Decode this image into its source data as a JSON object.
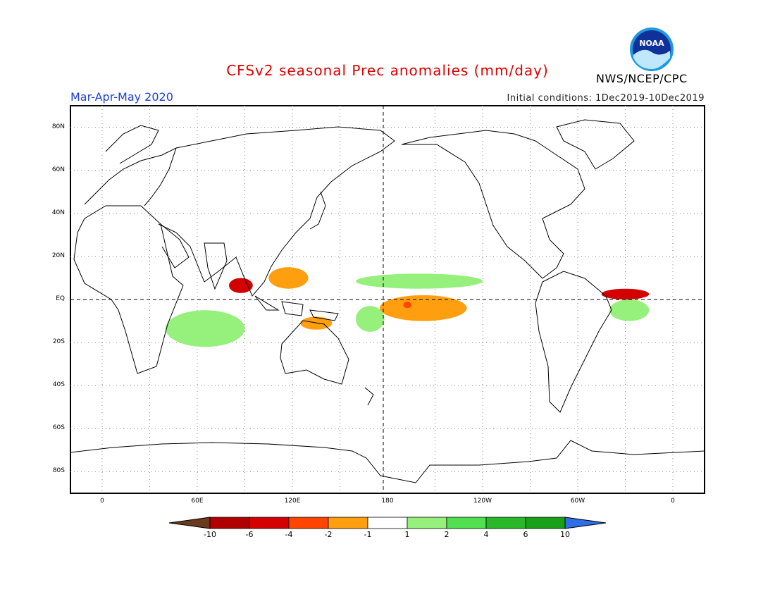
{
  "header": {
    "title": "CFSv2 seasonal Prec anomalies (mm/day)",
    "season": "Mar-Apr-May 2020",
    "initial_conditions": "Initial conditions: 1Dec2019-10Dec2019",
    "agency": "NWS/NCEP/CPC",
    "logo_text": "NOAA"
  },
  "map": {
    "projection": "cylindrical equidistant",
    "lat_range": [
      -90,
      90
    ],
    "lon_range": [
      -20,
      380
    ],
    "lat_labels": [
      "80N",
      "60N",
      "40N",
      "20N",
      "EQ",
      "20S",
      "40S",
      "60S",
      "80S"
    ],
    "lon_labels": [
      "0",
      "60E",
      "120E",
      "180",
      "120W",
      "60W",
      "0"
    ],
    "gridlines": "dotted",
    "reference_lines": [
      "equator",
      "180 meridian"
    ]
  },
  "legend": {
    "labels": [
      "-10",
      "-6",
      "-4",
      "-2",
      "-1",
      "1",
      "2",
      "4",
      "6",
      "10"
    ],
    "colors": [
      "#6b3a1f",
      "#b00000",
      "#d40000",
      "#ff4500",
      "#ff9f10",
      "#ffffff",
      "#96f07c",
      "#50e050",
      "#28b828",
      "#18a018",
      "#2e6fe8"
    ]
  },
  "chart_data": {
    "type": "heatmap",
    "variable": "precipitation anomaly",
    "units": "mm/day",
    "anomaly_regions": [
      {
        "region": "Equatorial central Pacific",
        "lat": [
          -10,
          2
        ],
        "lon": [
          175,
          230
        ],
        "range": "-1 to -2"
      },
      {
        "region": "Central Pacific core",
        "lat": [
          -4,
          -1
        ],
        "lon": [
          190,
          195
        ],
        "range": "-2 to -4"
      },
      {
        "region": "North Atlantic ITCZ",
        "lat": [
          0,
          5
        ],
        "lon": [
          315,
          345
        ],
        "range": "-2 to -6"
      },
      {
        "region": "Bay of Bengal / Andaman",
        "lat": [
          3,
          10
        ],
        "lon": [
          80,
          95
        ],
        "range": "-2 to -6"
      },
      {
        "region": "Philippine Sea / Maritime Continent",
        "lat": [
          5,
          15
        ],
        "lon": [
          105,
          130
        ],
        "range": "-1 to -2"
      },
      {
        "region": "Timor / Arafura Sea",
        "lat": [
          -14,
          -8
        ],
        "lon": [
          125,
          145
        ],
        "range": "-1 to -2"
      },
      {
        "region": "North Pacific ITCZ",
        "lat": [
          5,
          12
        ],
        "lon": [
          160,
          240
        ],
        "range": "1 to 2"
      },
      {
        "region": "Southwest Indian Ocean",
        "lat": [
          -22,
          -5
        ],
        "lon": [
          40,
          90
        ],
        "range": "1 to 2"
      },
      {
        "region": "Equatorial Atlantic south",
        "lat": [
          -10,
          0
        ],
        "lon": [
          320,
          345
        ],
        "range": "1 to 2"
      },
      {
        "region": "Southwest Pacific",
        "lat": [
          -15,
          -3
        ],
        "lon": [
          160,
          178
        ],
        "range": "1 to 2"
      }
    ]
  }
}
